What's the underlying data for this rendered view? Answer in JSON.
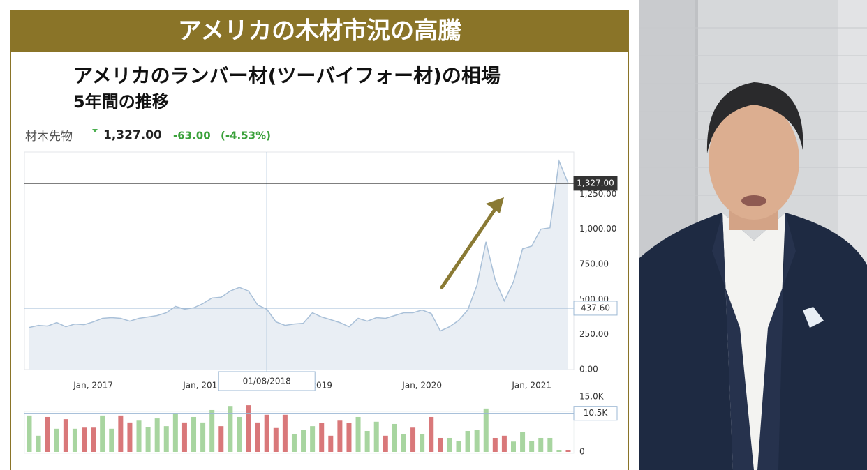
{
  "banner": "アメリカの木材市況の高騰",
  "chart_data": [
    {
      "type": "area",
      "title": "アメリカのランバー材(ツーバイフォー材)の相場",
      "subtitle": "5年間の推移",
      "quote": {
        "label": "材木先物",
        "price": {
          "value": 1327,
          "label": "1,327.00"
        },
        "change": {
          "value": -63,
          "label": "-63.00"
        },
        "change_pct": {
          "value": -4.53,
          "label": "(-4.53%)"
        }
      },
      "x": [
        "2016-06",
        "2016-07",
        "2016-08",
        "2016-09",
        "2016-10",
        "2016-11",
        "2016-12",
        "2017-01",
        "2017-02",
        "2017-03",
        "2017-04",
        "2017-05",
        "2017-06",
        "2017-07",
        "2017-08",
        "2017-09",
        "2017-10",
        "2017-11",
        "2017-12",
        "2018-01",
        "2018-02",
        "2018-03",
        "2018-04",
        "2018-05",
        "2018-06",
        "2018-07",
        "2018-08",
        "2018-09",
        "2018-10",
        "2018-11",
        "2018-12",
        "2019-01",
        "2019-02",
        "2019-03",
        "2019-04",
        "2019-05",
        "2019-06",
        "2019-07",
        "2019-08",
        "2019-09",
        "2019-10",
        "2019-11",
        "2019-12",
        "2020-01",
        "2020-02",
        "2020-03",
        "2020-04",
        "2020-05",
        "2020-06",
        "2020-07",
        "2020-08",
        "2020-09",
        "2020-10",
        "2020-11",
        "2020-12",
        "2021-01",
        "2021-02",
        "2021-03",
        "2021-04",
        "2021-05"
      ],
      "values": [
        300,
        315,
        310,
        335,
        305,
        325,
        320,
        340,
        365,
        370,
        365,
        345,
        365,
        375,
        385,
        405,
        450,
        430,
        440,
        470,
        510,
        515,
        560,
        585,
        560,
        460,
        430,
        340,
        315,
        325,
        330,
        405,
        375,
        355,
        335,
        305,
        365,
        345,
        370,
        365,
        385,
        405,
        405,
        425,
        400,
        275,
        305,
        350,
        425,
        600,
        910,
        640,
        490,
        625,
        860,
        880,
        1000,
        1010,
        1485,
        1327
      ],
      "color": "#a9c0d8",
      "fill": "#e9eef4",
      "xlim": [
        "2016-06",
        "2021-05"
      ],
      "xticks": [
        {
          "value": "2017-01",
          "label": "Jan, 2017"
        },
        {
          "value": "2018-01",
          "label": "Jan, 2018"
        },
        {
          "value": "2019-01",
          "label": "Jan, 2019"
        },
        {
          "value": "2020-01",
          "label": "Jan, 2020"
        },
        {
          "value": "2021-01",
          "label": "Jan, 2021"
        }
      ],
      "ylim": [
        0,
        1550
      ],
      "yticks": [
        {
          "value": 0,
          "label": "0.00"
        },
        {
          "value": 250,
          "label": "250.00"
        },
        {
          "value": 500,
          "label": "500.00"
        },
        {
          "value": 750,
          "label": "750.00"
        },
        {
          "value": 1000,
          "label": "1,000.00"
        },
        {
          "value": 1250,
          "label": "1,250.00"
        }
      ],
      "grid": false,
      "reference_lines": [
        {
          "value": 1327,
          "label": "1,327.00",
          "color": "#333333"
        },
        {
          "value": 437.6,
          "label": "437.60",
          "color": "#9db8d4"
        }
      ],
      "crosshair": {
        "x": "2018-08",
        "label": "01/08/2018"
      }
    },
    {
      "type": "bar",
      "x": [
        "2016-06",
        "2016-07",
        "2016-08",
        "2016-09",
        "2016-10",
        "2016-11",
        "2016-12",
        "2017-01",
        "2017-02",
        "2017-03",
        "2017-04",
        "2017-05",
        "2017-06",
        "2017-07",
        "2017-08",
        "2017-09",
        "2017-10",
        "2017-11",
        "2017-12",
        "2018-01",
        "2018-02",
        "2018-03",
        "2018-04",
        "2018-05",
        "2018-06",
        "2018-07",
        "2018-08",
        "2018-09",
        "2018-10",
        "2018-11",
        "2018-12",
        "2019-01",
        "2019-02",
        "2019-03",
        "2019-04",
        "2019-05",
        "2019-06",
        "2019-07",
        "2019-08",
        "2019-09",
        "2019-10",
        "2019-11",
        "2019-12",
        "2020-01",
        "2020-02",
        "2020-03",
        "2020-04",
        "2020-05",
        "2020-06",
        "2020-07",
        "2020-08",
        "2020-09",
        "2020-10",
        "2020-11",
        "2020-12",
        "2021-01",
        "2021-02",
        "2021-03",
        "2021-04",
        "2021-05"
      ],
      "values": [
        9900,
        4400,
        9500,
        6300,
        8900,
        6300,
        6600,
        6600,
        9900,
        6300,
        9900,
        8000,
        8500,
        6800,
        9100,
        7000,
        10600,
        8000,
        9500,
        8000,
        11400,
        7000,
        12500,
        9500,
        12700,
        8000,
        10100,
        6500,
        10100,
        4900,
        5900,
        7000,
        7800,
        4400,
        8500,
        7800,
        9500,
        5700,
        8200,
        4400,
        7600,
        4900,
        6600,
        4900,
        9500,
        3800,
        3800,
        3000,
        5700,
        5900,
        11800,
        3800,
        4400,
        2800,
        5500,
        3000,
        3800,
        3800,
        400,
        500
      ],
      "colors": [
        "#a8d5a0",
        "#a8d5a0",
        "#d9787a",
        "#a8d5a0",
        "#d9787a",
        "#a8d5a0",
        "#d9787a",
        "#d9787a",
        "#a8d5a0",
        "#a8d5a0",
        "#d9787a",
        "#d9787a",
        "#a8d5a0",
        "#a8d5a0",
        "#a8d5a0",
        "#a8d5a0",
        "#a8d5a0",
        "#d9787a",
        "#a8d5a0",
        "#a8d5a0",
        "#a8d5a0",
        "#d9787a",
        "#a8d5a0",
        "#a8d5a0",
        "#d9787a",
        "#d9787a",
        "#d9787a",
        "#d9787a",
        "#d9787a",
        "#a8d5a0",
        "#a8d5a0",
        "#a8d5a0",
        "#d9787a",
        "#d9787a",
        "#d9787a",
        "#d9787a",
        "#a8d5a0",
        "#a8d5a0",
        "#a8d5a0",
        "#d9787a",
        "#a8d5a0",
        "#a8d5a0",
        "#d9787a",
        "#a8d5a0",
        "#d9787a",
        "#d9787a",
        "#a8d5a0",
        "#a8d5a0",
        "#a8d5a0",
        "#a8d5a0",
        "#a8d5a0",
        "#d9787a",
        "#d9787a",
        "#a8d5a0",
        "#a8d5a0",
        "#a8d5a0",
        "#a8d5a0",
        "#a8d5a0",
        "#a8d5a0",
        "#d9787a"
      ],
      "xlim": [
        "2016-06",
        "2021-05"
      ],
      "ylim": [
        0,
        15000
      ],
      "yticks": [
        0,
        {
          "value": 15000,
          "label": "15.0K"
        }
      ],
      "reference_lines": [
        {
          "value": 10500,
          "label": "10.5K",
          "color": "#9db8d4"
        }
      ]
    }
  ]
}
